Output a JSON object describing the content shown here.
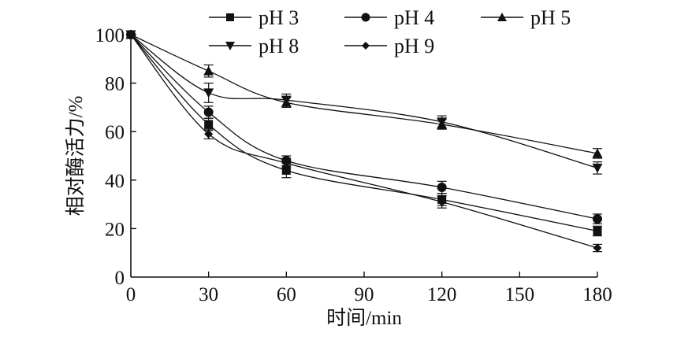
{
  "chart_data": {
    "type": "line",
    "title": "",
    "xlabel": "时间/min",
    "ylabel": "相对酶活力/%",
    "x": [
      0,
      30,
      60,
      120,
      180
    ],
    "xticks": [
      0,
      30,
      60,
      90,
      120,
      150,
      180
    ],
    "yticks": [
      0,
      20,
      40,
      60,
      80,
      100
    ],
    "xlim": [
      0,
      180
    ],
    "ylim": [
      0,
      100
    ],
    "grid": false,
    "legend_position": "top",
    "error_bars": true,
    "series": [
      {
        "name": "pH 3",
        "marker": "square",
        "values": [
          100,
          63,
          44,
          32,
          19
        ],
        "errors": [
          0,
          2.5,
          3,
          2.5,
          2
        ]
      },
      {
        "name": "pH 4",
        "marker": "circle",
        "values": [
          100,
          68,
          48,
          37,
          24
        ],
        "errors": [
          0,
          2.5,
          2,
          2.5,
          2
        ]
      },
      {
        "name": "pH 5",
        "marker": "triangle-up",
        "values": [
          100,
          85,
          72,
          63,
          51
        ],
        "errors": [
          0,
          2.5,
          2,
          2,
          2
        ]
      },
      {
        "name": "pH 8",
        "marker": "triangle-down",
        "values": [
          100,
          76,
          73,
          64,
          45
        ],
        "errors": [
          0,
          4,
          2.5,
          2.5,
          2.5
        ]
      },
      {
        "name": "pH 9",
        "marker": "diamond",
        "values": [
          100,
          59,
          47,
          31,
          12
        ],
        "errors": [
          0,
          2,
          2,
          2.5,
          1.5
        ]
      }
    ]
  }
}
